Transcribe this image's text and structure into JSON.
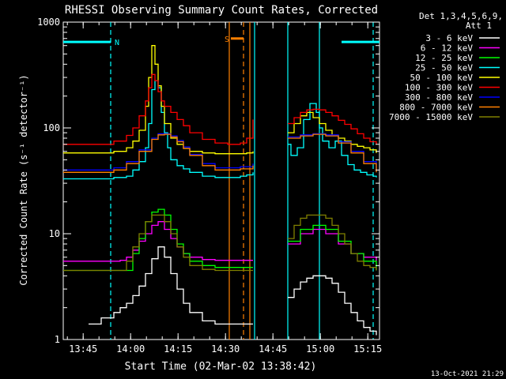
{
  "chart_data": {
    "type": "line",
    "title": "RHESSI Observing Summary Count Rates, Corrected",
    "xlabel": "Start Time (02-Mar-02 13:38:42)",
    "ylabel": "Corrected Count Rate (s⁻¹ detector⁻¹)",
    "x_unit": "minutes after 13:38:42 UT",
    "xlim": [
      0,
      100
    ],
    "ylim": [
      1,
      1000
    ],
    "yscale": "log",
    "x_ticks": [
      {
        "at": 6.3,
        "label": "13:45"
      },
      {
        "at": 21.3,
        "label": "14:00"
      },
      {
        "at": 36.3,
        "label": "14:15"
      },
      {
        "at": 51.3,
        "label": "14:30"
      },
      {
        "at": 66.3,
        "label": "14:45"
      },
      {
        "at": 81.3,
        "label": "15:00"
      },
      {
        "at": 96.3,
        "label": "15:15"
      }
    ],
    "y_ticks": [
      {
        "at": 1,
        "label": "1"
      },
      {
        "at": 10,
        "label": "10"
      },
      {
        "at": 100,
        "label": "100"
      },
      {
        "at": 1000,
        "label": "1000"
      }
    ],
    "legend_header": [
      "Det 1,3,4,5,6,9,",
      "Att 1"
    ],
    "legend_position": "right",
    "timestamp": "13-Oct-2021 21:29",
    "gaps": [
      [
        60.5,
        71
      ]
    ],
    "attenuator_windows": [
      [
        52.5,
        57
      ]
    ],
    "series": [
      {
        "name": "3 - 6 keV",
        "color": "#ffffff",
        "x": [
          8,
          12,
          16,
          18,
          20,
          22,
          24,
          26,
          28,
          30,
          32,
          34,
          36,
          38,
          40,
          44,
          48,
          52,
          56,
          60,
          71,
          73,
          75,
          77,
          79,
          81,
          83,
          85,
          87,
          89,
          91,
          93,
          95,
          97,
          99
        ],
        "y": [
          1.4,
          1.6,
          1.8,
          2.0,
          2.2,
          2.6,
          3.2,
          4.2,
          5.8,
          7.5,
          6.0,
          4.2,
          3.0,
          2.2,
          1.8,
          1.5,
          1.4,
          1.4,
          1.4,
          1.4,
          2.5,
          3.0,
          3.5,
          3.8,
          4.0,
          4.0,
          3.8,
          3.4,
          2.8,
          2.2,
          1.8,
          1.5,
          1.3,
          1.2,
          1.1
        ]
      },
      {
        "name": "6 - 12 keV",
        "color": "#ff00ff",
        "x": [
          0,
          10,
          18,
          20,
          22,
          24,
          26,
          28,
          30,
          32,
          34,
          36,
          38,
          40,
          44,
          48,
          52,
          56,
          60,
          71,
          75,
          79,
          81,
          83,
          87,
          91,
          95,
          99
        ],
        "y": [
          5.5,
          5.5,
          5.6,
          6.0,
          7.0,
          8.5,
          10.0,
          12.0,
          13.0,
          11.0,
          9.0,
          7.5,
          6.5,
          6.0,
          5.7,
          5.6,
          5.6,
          5.6,
          5.6,
          8.0,
          10.0,
          11.0,
          11.0,
          10.0,
          8.0,
          6.5,
          6.0,
          5.5
        ]
      },
      {
        "name": "12 - 25 keV",
        "color": "#00ff00",
        "x": [
          0,
          10,
          18,
          22,
          24,
          26,
          28,
          30,
          32,
          34,
          36,
          38,
          40,
          44,
          48,
          52,
          56,
          60,
          71,
          75,
          79,
          81,
          83,
          87,
          91,
          95,
          99
        ],
        "y": [
          4.5,
          4.5,
          4.5,
          6.5,
          9.0,
          13.0,
          16.0,
          17.0,
          15.0,
          11.0,
          8.0,
          6.5,
          5.5,
          5.0,
          4.8,
          4.8,
          4.8,
          4.8,
          8.5,
          11.0,
          12.0,
          12.0,
          11.0,
          8.5,
          6.5,
          5.5,
          4.5
        ]
      },
      {
        "name": "25 - 50 keV",
        "color": "#00ffff",
        "x": [
          0,
          10,
          16,
          20,
          22,
          24,
          26,
          27,
          28,
          29,
          30,
          31,
          32,
          33,
          34,
          36,
          38,
          40,
          44,
          48,
          52,
          56,
          58,
          60,
          71,
          72,
          74,
          76,
          78,
          80,
          81,
          82,
          84,
          86,
          88,
          90,
          92,
          94,
          96,
          98,
          99
        ],
        "y": [
          33,
          33,
          34,
          35,
          40,
          48,
          65,
          110,
          230,
          280,
          240,
          140,
          90,
          65,
          50,
          44,
          41,
          38,
          35,
          34,
          34,
          35,
          36,
          38,
          70,
          55,
          65,
          120,
          170,
          140,
          100,
          75,
          65,
          75,
          55,
          45,
          40,
          38,
          36,
          35,
          34
        ]
      },
      {
        "name": "50 - 100 keV",
        "color": "#ffff00",
        "x": [
          0,
          10,
          16,
          20,
          22,
          24,
          26,
          27,
          28,
          29,
          30,
          31,
          32,
          34,
          36,
          38,
          40,
          44,
          48,
          52,
          56,
          58,
          60,
          71,
          73,
          75,
          77,
          79,
          81,
          83,
          85,
          87,
          89,
          91,
          93,
          95,
          97,
          99
        ],
        "y": [
          58,
          58,
          60,
          65,
          75,
          95,
          160,
          300,
          600,
          400,
          250,
          160,
          110,
          80,
          70,
          64,
          60,
          58,
          57,
          57,
          57,
          58,
          60,
          90,
          110,
          130,
          140,
          125,
          110,
          95,
          85,
          80,
          75,
          70,
          67,
          65,
          62,
          58
        ]
      },
      {
        "name": "100 - 300 keV",
        "color": "#ff0000",
        "x": [
          0,
          10,
          16,
          20,
          22,
          24,
          26,
          27,
          28,
          29,
          30,
          31,
          32,
          34,
          36,
          38,
          40,
          44,
          48,
          52,
          56,
          58,
          60,
          71,
          73,
          75,
          77,
          79,
          81,
          83,
          85,
          87,
          89,
          91,
          93,
          95,
          97,
          99
        ],
        "y": [
          70,
          70,
          75,
          85,
          100,
          130,
          180,
          240,
          320,
          280,
          220,
          180,
          160,
          140,
          120,
          105,
          90,
          78,
          72,
          70,
          72,
          80,
          120,
          110,
          125,
          140,
          148,
          150,
          148,
          140,
          130,
          118,
          108,
          98,
          88,
          80,
          74,
          70
        ]
      },
      {
        "name": "300 - 800 keV",
        "color": "#0000ff",
        "x": [
          0,
          10,
          16,
          20,
          24,
          28,
          30,
          32,
          34,
          36,
          38,
          40,
          44,
          48,
          52,
          56,
          60,
          71,
          75,
          79,
          81,
          83,
          87,
          91,
          95,
          99
        ],
        "y": [
          40,
          40,
          42,
          48,
          62,
          80,
          88,
          88,
          84,
          76,
          66,
          56,
          46,
          42,
          42,
          43,
          46,
          82,
          86,
          88,
          88,
          86,
          74,
          60,
          48,
          40
        ]
      },
      {
        "name": "800 - 7000 keV",
        "color": "#ff8000",
        "x": [
          0,
          10,
          16,
          20,
          24,
          28,
          30,
          32,
          34,
          36,
          38,
          40,
          44,
          48,
          52,
          56,
          60,
          71,
          75,
          79,
          81,
          83,
          87,
          91,
          95,
          99
        ],
        "y": [
          38,
          38,
          40,
          46,
          60,
          78,
          86,
          87,
          82,
          74,
          64,
          55,
          44,
          40,
          40,
          41,
          44,
          80,
          84,
          87,
          87,
          84,
          72,
          58,
          46,
          38
        ]
      },
      {
        "name": "7000 - 15000 keV",
        "color": "#808000",
        "x": [
          0,
          10,
          18,
          20,
          22,
          24,
          26,
          28,
          30,
          32,
          34,
          36,
          38,
          40,
          44,
          48,
          52,
          56,
          60,
          71,
          73,
          75,
          77,
          79,
          81,
          83,
          85,
          87,
          89,
          91,
          93,
          95,
          97,
          99
        ],
        "y": [
          4.5,
          4.5,
          4.5,
          5.5,
          7.5,
          10.0,
          13.0,
          15.0,
          15.0,
          13.0,
          10.0,
          7.5,
          6.0,
          5.0,
          4.6,
          4.5,
          4.5,
          4.5,
          4.5,
          9.0,
          12.0,
          14.0,
          15.0,
          15.0,
          15.0,
          14.0,
          12.0,
          10.0,
          8.0,
          6.5,
          5.5,
          5.0,
          4.8,
          4.5
        ]
      }
    ],
    "markers": {
      "horizontal_bars": [
        {
          "x": [
            0,
            15
          ],
          "y": 650,
          "color": "#00ffff",
          "label": "N"
        },
        {
          "x": [
            88,
            100
          ],
          "y": 650,
          "color": "#00ffff",
          "label": ""
        },
        {
          "x": [
            53,
            57
          ],
          "y": 700,
          "color": "#ff8000",
          "label": "S"
        }
      ],
      "vertical_lines": [
        {
          "x": 15,
          "color": "#00ffff",
          "style": "dashed"
        },
        {
          "x": 60.5,
          "color": "#00ffff",
          "style": "solid"
        },
        {
          "x": 71,
          "color": "#00ffff",
          "style": "solid"
        },
        {
          "x": 81,
          "color": "#00ffff",
          "style": "solid"
        },
        {
          "x": 98,
          "color": "#00ffff",
          "style": "dashed"
        },
        {
          "x": 52.5,
          "color": "#ff8000",
          "style": "solid"
        },
        {
          "x": 57,
          "color": "#ff8000",
          "style": "dashed"
        },
        {
          "x": 59,
          "color": "#ff8000",
          "style": "solid"
        }
      ]
    }
  }
}
